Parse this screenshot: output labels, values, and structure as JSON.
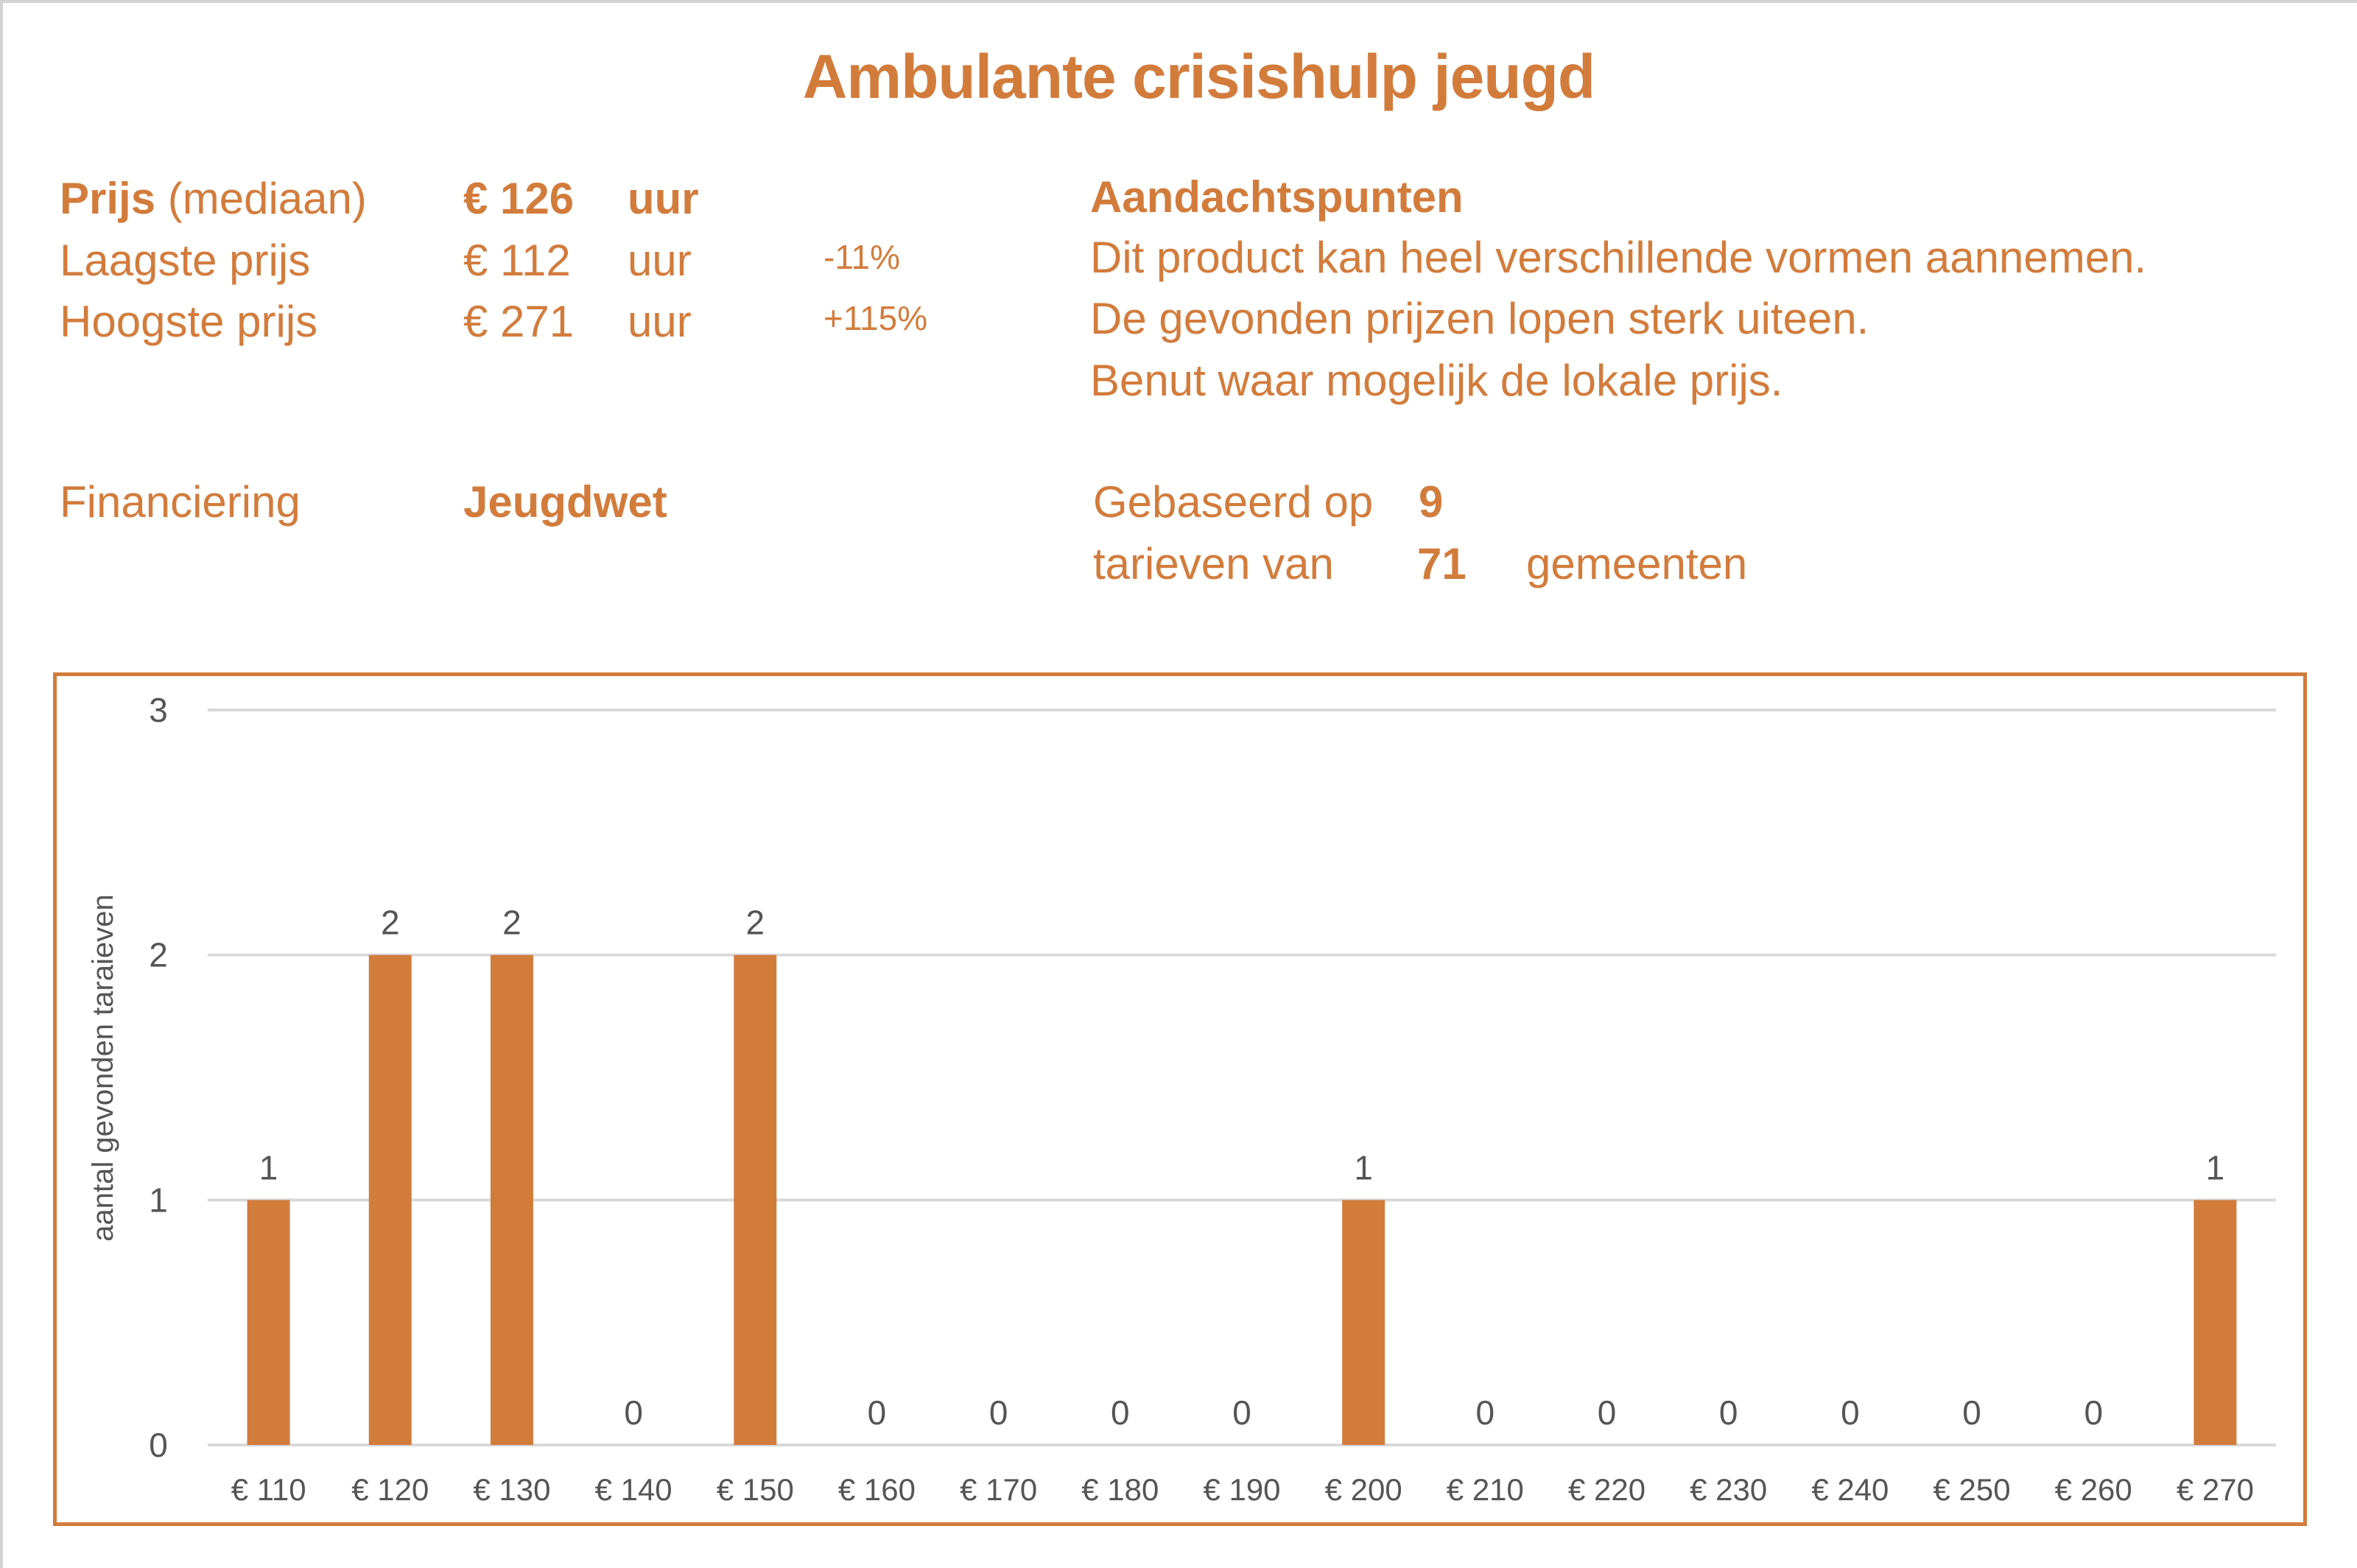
{
  "title": "Ambulante crisishulp jeugd",
  "colors": {
    "accent": "#D27C3C",
    "gridline": "#D9D9D9",
    "axis_text": "#555555",
    "label_text": "#404040",
    "page_border": "#D3D3D3"
  },
  "prices": {
    "median": {
      "label_bold": "Prijs",
      "label_rest": "(mediaan)",
      "value": "€ 126",
      "unit": "uur"
    },
    "lowest": {
      "label": "Laagste prijs",
      "value": "€ 112",
      "unit": "uur",
      "diff": "-11%"
    },
    "highest": {
      "label": "Hoogste prijs",
      "value": "€ 271",
      "unit": "uur",
      "diff": "+115%"
    }
  },
  "financing": {
    "label": "Financiering",
    "value": "Jeugdwet"
  },
  "notes": {
    "heading": "Aandachtspunten",
    "lines": [
      "Dit product kan heel verschillende vormen aannemen.",
      "De gevonden prijzen lopen sterk uiteen.",
      "Benut waar mogelijk de lokale prijs."
    ]
  },
  "basis": {
    "prefix": "Gebaseerd op",
    "rates_count": "9",
    "middle": "tarieven van",
    "municipalities_count": "71",
    "suffix": "gemeenten"
  },
  "chart_data": {
    "type": "bar",
    "title": "",
    "xlabel": "",
    "ylabel": "aantal gevonden taraieven",
    "categories": [
      "€ 110",
      "€ 120",
      "€ 130",
      "€ 140",
      "€ 150",
      "€ 160",
      "€ 170",
      "€ 180",
      "€ 190",
      "€ 200",
      "€ 210",
      "€ 220",
      "€ 230",
      "€ 240",
      "€ 250",
      "€ 260",
      "€ 270"
    ],
    "values": [
      1,
      2,
      2,
      0,
      2,
      0,
      0,
      0,
      0,
      1,
      0,
      0,
      0,
      0,
      0,
      0,
      1
    ],
    "ylim": [
      0,
      3
    ],
    "yticks": [
      "0",
      "1",
      "2",
      "3"
    ],
    "grid": true,
    "data_labels": true,
    "legend": "none"
  }
}
